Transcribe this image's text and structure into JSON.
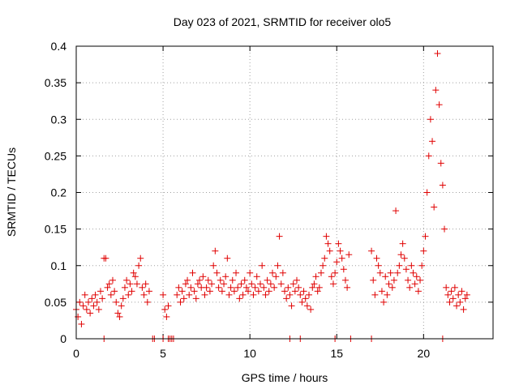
{
  "chart_data": {
    "type": "scatter",
    "title": "Day 023 of 2021, SRMTID for receiver olo5",
    "xlabel": "GPS time / hours",
    "ylabel": "SRMTID / TECUs",
    "xlim": [
      0,
      24
    ],
    "ylim": [
      0,
      0.4
    ],
    "xticks": [
      0,
      5,
      10,
      15,
      20
    ],
    "xtick_labels": [
      "0",
      "5",
      "10",
      "15",
      "20"
    ],
    "yticks": [
      0,
      0.05,
      0.1,
      0.15,
      0.2,
      0.25,
      0.3,
      0.35,
      0.4
    ],
    "ytick_labels": [
      "0",
      "0.05",
      "0.1",
      "0.15",
      "0.2",
      "0.25",
      "0.3",
      "0.35",
      "0.4"
    ],
    "grid": true,
    "marker": "+",
    "color": "#e00000",
    "series": [
      {
        "name": "SRMTID",
        "points": [
          [
            0.0,
            0.04
          ],
          [
            0.1,
            0.03
          ],
          [
            0.2,
            0.05
          ],
          [
            0.3,
            0.02
          ],
          [
            0.4,
            0.045
          ],
          [
            0.5,
            0.06
          ],
          [
            0.6,
            0.04
          ],
          [
            0.7,
            0.05
          ],
          [
            0.8,
            0.035
          ],
          [
            0.9,
            0.055
          ],
          [
            1.0,
            0.045
          ],
          [
            1.1,
            0.06
          ],
          [
            1.2,
            0.05
          ],
          [
            1.3,
            0.04
          ],
          [
            1.4,
            0.065
          ],
          [
            1.5,
            0.055
          ],
          [
            1.6,
            0.11
          ],
          [
            1.7,
            0.11
          ],
          [
            1.8,
            0.07
          ],
          [
            1.9,
            0.075
          ],
          [
            2.0,
            0.06
          ],
          [
            2.1,
            0.08
          ],
          [
            2.2,
            0.065
          ],
          [
            2.3,
            0.05
          ],
          [
            2.4,
            0.035
          ],
          [
            2.5,
            0.03
          ],
          [
            2.6,
            0.045
          ],
          [
            2.7,
            0.055
          ],
          [
            2.8,
            0.07
          ],
          [
            2.9,
            0.08
          ],
          [
            3.0,
            0.06
          ],
          [
            3.1,
            0.075
          ],
          [
            3.2,
            0.065
          ],
          [
            3.3,
            0.09
          ],
          [
            3.4,
            0.085
          ],
          [
            3.5,
            0.075
          ],
          [
            3.6,
            0.1
          ],
          [
            3.7,
            0.11
          ],
          [
            3.8,
            0.07
          ],
          [
            3.9,
            0.06
          ],
          [
            4.0,
            0.075
          ],
          [
            4.1,
            0.05
          ],
          [
            4.2,
            0.065
          ],
          [
            5.0,
            0.06
          ],
          [
            5.1,
            0.04
          ],
          [
            5.2,
            0.03
          ],
          [
            5.3,
            0.045
          ],
          [
            5.8,
            0.06
          ],
          [
            5.9,
            0.07
          ],
          [
            6.0,
            0.05
          ],
          [
            6.1,
            0.065
          ],
          [
            6.2,
            0.055
          ],
          [
            6.3,
            0.075
          ],
          [
            6.4,
            0.08
          ],
          [
            6.5,
            0.06
          ],
          [
            6.6,
            0.07
          ],
          [
            6.7,
            0.09
          ],
          [
            6.8,
            0.065
          ],
          [
            6.9,
            0.055
          ],
          [
            7.0,
            0.075
          ],
          [
            7.1,
            0.08
          ],
          [
            7.2,
            0.07
          ],
          [
            7.3,
            0.085
          ],
          [
            7.4,
            0.06
          ],
          [
            7.5,
            0.07
          ],
          [
            7.6,
            0.08
          ],
          [
            7.7,
            0.065
          ],
          [
            7.8,
            0.075
          ],
          [
            7.9,
            0.1
          ],
          [
            8.0,
            0.12
          ],
          [
            8.1,
            0.09
          ],
          [
            8.2,
            0.07
          ],
          [
            8.3,
            0.08
          ],
          [
            8.4,
            0.065
          ],
          [
            8.5,
            0.075
          ],
          [
            8.6,
            0.085
          ],
          [
            8.7,
            0.11
          ],
          [
            8.8,
            0.06
          ],
          [
            8.9,
            0.07
          ],
          [
            9.0,
            0.08
          ],
          [
            9.1,
            0.065
          ],
          [
            9.2,
            0.09
          ],
          [
            9.3,
            0.07
          ],
          [
            9.4,
            0.055
          ],
          [
            9.5,
            0.075
          ],
          [
            9.6,
            0.06
          ],
          [
            9.7,
            0.08
          ],
          [
            9.8,
            0.07
          ],
          [
            9.9,
            0.065
          ],
          [
            10.0,
            0.09
          ],
          [
            10.1,
            0.075
          ],
          [
            10.2,
            0.06
          ],
          [
            10.3,
            0.07
          ],
          [
            10.4,
            0.085
          ],
          [
            10.5,
            0.065
          ],
          [
            10.6,
            0.075
          ],
          [
            10.7,
            0.1
          ],
          [
            10.8,
            0.07
          ],
          [
            10.9,
            0.06
          ],
          [
            11.0,
            0.08
          ],
          [
            11.1,
            0.065
          ],
          [
            11.2,
            0.075
          ],
          [
            11.3,
            0.09
          ],
          [
            11.4,
            0.07
          ],
          [
            11.5,
            0.085
          ],
          [
            11.6,
            0.1
          ],
          [
            11.7,
            0.14
          ],
          [
            11.8,
            0.075
          ],
          [
            11.9,
            0.09
          ],
          [
            12.0,
            0.065
          ],
          [
            12.1,
            0.055
          ],
          [
            12.2,
            0.07
          ],
          [
            12.3,
            0.06
          ],
          [
            12.4,
            0.045
          ],
          [
            12.5,
            0.075
          ],
          [
            12.6,
            0.065
          ],
          [
            12.7,
            0.08
          ],
          [
            12.8,
            0.07
          ],
          [
            12.9,
            0.06
          ],
          [
            13.0,
            0.05
          ],
          [
            13.1,
            0.065
          ],
          [
            13.2,
            0.055
          ],
          [
            13.3,
            0.045
          ],
          [
            13.4,
            0.06
          ],
          [
            13.5,
            0.04
          ],
          [
            13.6,
            0.07
          ],
          [
            13.7,
            0.075
          ],
          [
            13.8,
            0.085
          ],
          [
            13.9,
            0.065
          ],
          [
            14.0,
            0.07
          ],
          [
            14.1,
            0.09
          ],
          [
            14.2,
            0.1
          ],
          [
            14.3,
            0.11
          ],
          [
            14.4,
            0.14
          ],
          [
            14.5,
            0.13
          ],
          [
            14.6,
            0.12
          ],
          [
            14.7,
            0.085
          ],
          [
            14.8,
            0.075
          ],
          [
            14.9,
            0.09
          ],
          [
            15.0,
            0.105
          ],
          [
            15.1,
            0.13
          ],
          [
            15.2,
            0.12
          ],
          [
            15.3,
            0.11
          ],
          [
            15.4,
            0.095
          ],
          [
            15.5,
            0.08
          ],
          [
            15.6,
            0.07
          ],
          [
            15.7,
            0.115
          ],
          [
            17.0,
            0.12
          ],
          [
            17.1,
            0.08
          ],
          [
            17.2,
            0.06
          ],
          [
            17.3,
            0.11
          ],
          [
            17.4,
            0.1
          ],
          [
            17.5,
            0.09
          ],
          [
            17.6,
            0.065
          ],
          [
            17.7,
            0.05
          ],
          [
            17.8,
            0.085
          ],
          [
            17.9,
            0.06
          ],
          [
            18.0,
            0.075
          ],
          [
            18.1,
            0.09
          ],
          [
            18.2,
            0.07
          ],
          [
            18.3,
            0.08
          ],
          [
            18.4,
            0.175
          ],
          [
            18.5,
            0.09
          ],
          [
            18.6,
            0.1
          ],
          [
            18.7,
            0.115
          ],
          [
            18.8,
            0.13
          ],
          [
            18.9,
            0.11
          ],
          [
            19.0,
            0.095
          ],
          [
            19.1,
            0.08
          ],
          [
            19.2,
            0.07
          ],
          [
            19.3,
            0.1
          ],
          [
            19.4,
            0.09
          ],
          [
            19.5,
            0.075
          ],
          [
            19.6,
            0.085
          ],
          [
            19.7,
            0.065
          ],
          [
            19.8,
            0.08
          ],
          [
            19.9,
            0.1
          ],
          [
            20.0,
            0.12
          ],
          [
            20.1,
            0.14
          ],
          [
            20.2,
            0.2
          ],
          [
            20.3,
            0.25
          ],
          [
            20.4,
            0.3
          ],
          [
            20.5,
            0.27
          ],
          [
            20.6,
            0.18
          ],
          [
            20.7,
            0.34
          ],
          [
            20.8,
            0.39
          ],
          [
            20.9,
            0.32
          ],
          [
            21.0,
            0.24
          ],
          [
            21.1,
            0.21
          ],
          [
            21.2,
            0.15
          ],
          [
            21.3,
            0.07
          ],
          [
            21.4,
            0.06
          ],
          [
            21.5,
            0.05
          ],
          [
            21.6,
            0.065
          ],
          [
            21.7,
            0.055
          ],
          [
            21.8,
            0.07
          ],
          [
            21.9,
            0.045
          ],
          [
            22.0,
            0.06
          ],
          [
            22.1,
            0.05
          ],
          [
            22.2,
            0.065
          ],
          [
            22.3,
            0.04
          ],
          [
            22.4,
            0.055
          ],
          [
            22.5,
            0.06
          ],
          [
            1.6,
            0.0
          ],
          [
            4.4,
            0.0
          ],
          [
            4.5,
            0.0
          ],
          [
            5.0,
            0.0
          ],
          [
            5.3,
            0.0
          ],
          [
            5.4,
            0.0
          ],
          [
            5.5,
            0.0
          ],
          [
            5.6,
            0.0
          ],
          [
            12.3,
            0.0
          ],
          [
            12.9,
            0.0
          ],
          [
            14.9,
            0.0
          ],
          [
            15.8,
            0.0
          ],
          [
            17.0,
            0.0
          ],
          [
            21.1,
            0.0
          ]
        ]
      }
    ]
  }
}
